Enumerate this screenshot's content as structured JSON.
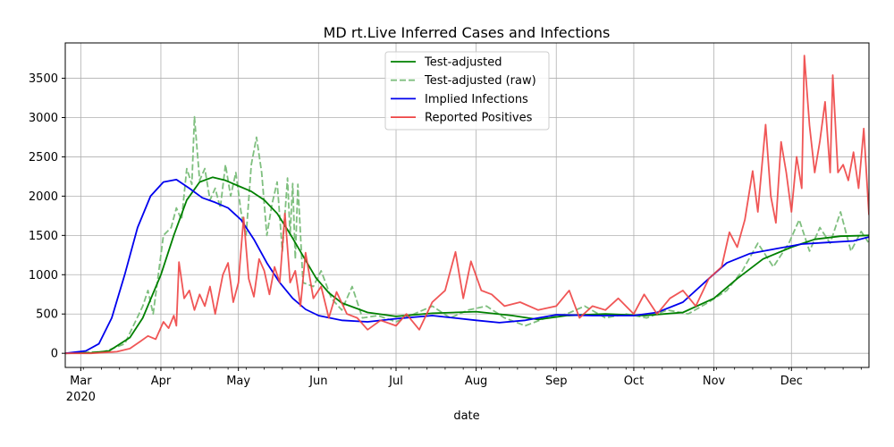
{
  "chart_data": {
    "type": "line",
    "title": "MD rt.Live Inferred Cases and Infections",
    "xlabel": "date",
    "ylabel": "",
    "x_range": [
      "2020-02-24",
      "2020-12-31"
    ],
    "ylim": [
      -180,
      3950
    ],
    "grid": true,
    "legend_position": "top-center",
    "x_ticks": [
      {
        "date": "2020-03-01",
        "label": "Mar",
        "sublabel": "2020"
      },
      {
        "date": "2020-04-01",
        "label": "Apr",
        "sublabel": ""
      },
      {
        "date": "2020-05-01",
        "label": "May",
        "sublabel": ""
      },
      {
        "date": "2020-06-01",
        "label": "Jun",
        "sublabel": ""
      },
      {
        "date": "2020-07-01",
        "label": "Jul",
        "sublabel": ""
      },
      {
        "date": "2020-08-01",
        "label": "Aug",
        "sublabel": ""
      },
      {
        "date": "2020-09-01",
        "label": "Sep",
        "sublabel": ""
      },
      {
        "date": "2020-10-01",
        "label": "Oct",
        "sublabel": ""
      },
      {
        "date": "2020-11-01",
        "label": "Nov",
        "sublabel": ""
      },
      {
        "date": "2020-12-01",
        "label": "Dec",
        "sublabel": ""
      }
    ],
    "y_ticks": [
      0,
      500,
      1000,
      1500,
      2000,
      2500,
      3000,
      3500
    ],
    "series": [
      {
        "name": "Test-adjusted",
        "color": "#008000",
        "style": "solid",
        "points": [
          [
            "2020-02-24",
            0
          ],
          [
            "2020-03-05",
            5
          ],
          [
            "2020-03-12",
            30
          ],
          [
            "2020-03-20",
            200
          ],
          [
            "2020-03-25",
            450
          ],
          [
            "2020-04-01",
            1000
          ],
          [
            "2020-04-06",
            1500
          ],
          [
            "2020-04-11",
            1950
          ],
          [
            "2020-04-16",
            2180
          ],
          [
            "2020-04-21",
            2240
          ],
          [
            "2020-04-26",
            2200
          ],
          [
            "2020-05-01",
            2130
          ],
          [
            "2020-05-06",
            2060
          ],
          [
            "2020-05-11",
            1950
          ],
          [
            "2020-05-16",
            1780
          ],
          [
            "2020-05-21",
            1520
          ],
          [
            "2020-05-26",
            1240
          ],
          [
            "2020-05-31",
            960
          ],
          [
            "2020-06-05",
            770
          ],
          [
            "2020-06-10",
            640
          ],
          [
            "2020-06-20",
            520
          ],
          [
            "2020-07-01",
            470
          ],
          [
            "2020-07-15",
            510
          ],
          [
            "2020-08-01",
            530
          ],
          [
            "2020-08-15",
            480
          ],
          [
            "2020-08-25",
            430
          ],
          [
            "2020-09-05",
            480
          ],
          [
            "2020-09-20",
            500
          ],
          [
            "2020-10-05",
            480
          ],
          [
            "2020-10-20",
            520
          ],
          [
            "2020-11-01",
            700
          ],
          [
            "2020-11-10",
            950
          ],
          [
            "2020-11-20",
            1200
          ],
          [
            "2020-12-01",
            1350
          ],
          [
            "2020-12-10",
            1450
          ],
          [
            "2020-12-20",
            1490
          ],
          [
            "2020-12-31",
            1500
          ]
        ]
      },
      {
        "name": "Test-adjusted (raw)",
        "color": "#7fbf7f",
        "style": "dashed",
        "points": [
          [
            "2020-02-24",
            0
          ],
          [
            "2020-03-10",
            20
          ],
          [
            "2020-03-18",
            120
          ],
          [
            "2020-03-25",
            600
          ],
          [
            "2020-03-27",
            800
          ],
          [
            "2020-03-29",
            500
          ],
          [
            "2020-03-31",
            1000
          ],
          [
            "2020-04-02",
            1500
          ],
          [
            "2020-04-05",
            1600
          ],
          [
            "2020-04-07",
            1850
          ],
          [
            "2020-04-09",
            1700
          ],
          [
            "2020-04-11",
            2350
          ],
          [
            "2020-04-13",
            2150
          ],
          [
            "2020-04-14",
            3010
          ],
          [
            "2020-04-16",
            2200
          ],
          [
            "2020-04-18",
            2350
          ],
          [
            "2020-04-20",
            1950
          ],
          [
            "2020-04-22",
            2100
          ],
          [
            "2020-04-24",
            1850
          ],
          [
            "2020-04-26",
            2400
          ],
          [
            "2020-04-28",
            2000
          ],
          [
            "2020-04-30",
            2300
          ],
          [
            "2020-05-02",
            1800
          ],
          [
            "2020-05-04",
            1500
          ],
          [
            "2020-05-06",
            2400
          ],
          [
            "2020-05-08",
            2750
          ],
          [
            "2020-05-10",
            2300
          ],
          [
            "2020-05-12",
            1500
          ],
          [
            "2020-05-14",
            1900
          ],
          [
            "2020-05-16",
            2180
          ],
          [
            "2020-05-18",
            1300
          ],
          [
            "2020-05-20",
            2230
          ],
          [
            "2020-05-21",
            1500
          ],
          [
            "2020-05-22",
            2160
          ],
          [
            "2020-05-23",
            1200
          ],
          [
            "2020-05-24",
            2150
          ],
          [
            "2020-05-26",
            900
          ],
          [
            "2020-05-30",
            850
          ],
          [
            "2020-06-02",
            1050
          ],
          [
            "2020-06-06",
            700
          ],
          [
            "2020-06-10",
            550
          ],
          [
            "2020-06-14",
            850
          ],
          [
            "2020-06-18",
            450
          ],
          [
            "2020-06-24",
            480
          ],
          [
            "2020-07-01",
            400
          ],
          [
            "2020-07-08",
            500
          ],
          [
            "2020-07-15",
            600
          ],
          [
            "2020-07-22",
            450
          ],
          [
            "2020-07-29",
            550
          ],
          [
            "2020-08-05",
            600
          ],
          [
            "2020-08-12",
            450
          ],
          [
            "2020-08-20",
            350
          ],
          [
            "2020-08-28",
            450
          ],
          [
            "2020-09-05",
            500
          ],
          [
            "2020-09-12",
            600
          ],
          [
            "2020-09-20",
            450
          ],
          [
            "2020-09-28",
            500
          ],
          [
            "2020-10-06",
            450
          ],
          [
            "2020-10-14",
            550
          ],
          [
            "2020-10-22",
            500
          ],
          [
            "2020-10-30",
            650
          ],
          [
            "2020-11-06",
            800
          ],
          [
            "2020-11-12",
            1050
          ],
          [
            "2020-11-18",
            1400
          ],
          [
            "2020-11-24",
            1100
          ],
          [
            "2020-11-30",
            1400
          ],
          [
            "2020-12-04",
            1700
          ],
          [
            "2020-12-08",
            1300
          ],
          [
            "2020-12-12",
            1600
          ],
          [
            "2020-12-16",
            1400
          ],
          [
            "2020-12-20",
            1800
          ],
          [
            "2020-12-24",
            1300
          ],
          [
            "2020-12-28",
            1550
          ],
          [
            "2020-12-31",
            1400
          ]
        ]
      },
      {
        "name": "Implied Infections",
        "color": "#0000ee",
        "style": "solid",
        "points": [
          [
            "2020-02-24",
            0
          ],
          [
            "2020-03-03",
            30
          ],
          [
            "2020-03-08",
            120
          ],
          [
            "2020-03-13",
            450
          ],
          [
            "2020-03-18",
            1000
          ],
          [
            "2020-03-23",
            1600
          ],
          [
            "2020-03-28",
            2000
          ],
          [
            "2020-04-02",
            2180
          ],
          [
            "2020-04-07",
            2210
          ],
          [
            "2020-04-12",
            2100
          ],
          [
            "2020-04-17",
            1980
          ],
          [
            "2020-04-22",
            1920
          ],
          [
            "2020-04-27",
            1850
          ],
          [
            "2020-05-02",
            1700
          ],
          [
            "2020-05-07",
            1450
          ],
          [
            "2020-05-12",
            1150
          ],
          [
            "2020-05-17",
            900
          ],
          [
            "2020-05-22",
            700
          ],
          [
            "2020-05-27",
            560
          ],
          [
            "2020-06-01",
            480
          ],
          [
            "2020-06-10",
            420
          ],
          [
            "2020-06-20",
            400
          ],
          [
            "2020-07-01",
            440
          ],
          [
            "2020-07-15",
            480
          ],
          [
            "2020-08-01",
            420
          ],
          [
            "2020-08-10",
            390
          ],
          [
            "2020-08-20",
            420
          ],
          [
            "2020-09-01",
            490
          ],
          [
            "2020-09-15",
            480
          ],
          [
            "2020-10-01",
            480
          ],
          [
            "2020-10-10",
            520
          ],
          [
            "2020-10-20",
            650
          ],
          [
            "2020-10-30",
            950
          ],
          [
            "2020-11-06",
            1150
          ],
          [
            "2020-11-15",
            1270
          ],
          [
            "2020-11-25",
            1330
          ],
          [
            "2020-12-05",
            1390
          ],
          [
            "2020-12-15",
            1410
          ],
          [
            "2020-12-25",
            1430
          ],
          [
            "2020-12-31",
            1480
          ]
        ]
      },
      {
        "name": "Reported Positives",
        "color": "#ee4444",
        "style": "solid",
        "points": [
          [
            "2020-02-24",
            0
          ],
          [
            "2020-03-05",
            0
          ],
          [
            "2020-03-15",
            20
          ],
          [
            "2020-03-20",
            60
          ],
          [
            "2020-03-24",
            150
          ],
          [
            "2020-03-27",
            220
          ],
          [
            "2020-03-30",
            180
          ],
          [
            "2020-04-02",
            400
          ],
          [
            "2020-04-04",
            320
          ],
          [
            "2020-04-06",
            480
          ],
          [
            "2020-04-07",
            350
          ],
          [
            "2020-04-08",
            1160
          ],
          [
            "2020-04-10",
            700
          ],
          [
            "2020-04-12",
            800
          ],
          [
            "2020-04-14",
            550
          ],
          [
            "2020-04-16",
            750
          ],
          [
            "2020-04-18",
            600
          ],
          [
            "2020-04-20",
            850
          ],
          [
            "2020-04-22",
            500
          ],
          [
            "2020-04-25",
            1000
          ],
          [
            "2020-04-27",
            1150
          ],
          [
            "2020-04-29",
            650
          ],
          [
            "2020-05-01",
            900
          ],
          [
            "2020-05-03",
            1730
          ],
          [
            "2020-05-05",
            950
          ],
          [
            "2020-05-07",
            720
          ],
          [
            "2020-05-09",
            1200
          ],
          [
            "2020-05-11",
            1050
          ],
          [
            "2020-05-13",
            750
          ],
          [
            "2020-05-15",
            1100
          ],
          [
            "2020-05-17",
            900
          ],
          [
            "2020-05-19",
            1780
          ],
          [
            "2020-05-21",
            900
          ],
          [
            "2020-05-23",
            1050
          ],
          [
            "2020-05-25",
            600
          ],
          [
            "2020-05-27",
            1280
          ],
          [
            "2020-05-30",
            700
          ],
          [
            "2020-06-02",
            850
          ],
          [
            "2020-06-05",
            450
          ],
          [
            "2020-06-08",
            780
          ],
          [
            "2020-06-12",
            500
          ],
          [
            "2020-06-16",
            450
          ],
          [
            "2020-06-20",
            300
          ],
          [
            "2020-06-25",
            420
          ],
          [
            "2020-07-01",
            350
          ],
          [
            "2020-07-05",
            500
          ],
          [
            "2020-07-10",
            300
          ],
          [
            "2020-07-15",
            650
          ],
          [
            "2020-07-20",
            800
          ],
          [
            "2020-07-24",
            1290
          ],
          [
            "2020-07-27",
            700
          ],
          [
            "2020-07-30",
            1170
          ],
          [
            "2020-08-03",
            800
          ],
          [
            "2020-08-07",
            750
          ],
          [
            "2020-08-12",
            600
          ],
          [
            "2020-08-18",
            650
          ],
          [
            "2020-08-25",
            550
          ],
          [
            "2020-09-01",
            600
          ],
          [
            "2020-09-06",
            800
          ],
          [
            "2020-09-10",
            450
          ],
          [
            "2020-09-15",
            600
          ],
          [
            "2020-09-20",
            550
          ],
          [
            "2020-09-25",
            700
          ],
          [
            "2020-10-01",
            500
          ],
          [
            "2020-10-05",
            750
          ],
          [
            "2020-10-10",
            500
          ],
          [
            "2020-10-15",
            700
          ],
          [
            "2020-10-20",
            800
          ],
          [
            "2020-10-25",
            600
          ],
          [
            "2020-10-30",
            950
          ],
          [
            "2020-11-04",
            1100
          ],
          [
            "2020-11-07",
            1540
          ],
          [
            "2020-11-10",
            1350
          ],
          [
            "2020-11-13",
            1700
          ],
          [
            "2020-11-16",
            2320
          ],
          [
            "2020-11-18",
            1800
          ],
          [
            "2020-11-21",
            2910
          ],
          [
            "2020-11-23",
            2000
          ],
          [
            "2020-11-25",
            1660
          ],
          [
            "2020-11-27",
            2690
          ],
          [
            "2020-11-29",
            2300
          ],
          [
            "2020-12-01",
            1800
          ],
          [
            "2020-12-03",
            2500
          ],
          [
            "2020-12-05",
            2100
          ],
          [
            "2020-12-06",
            3790
          ],
          [
            "2020-12-08",
            2900
          ],
          [
            "2020-12-10",
            2300
          ],
          [
            "2020-12-12",
            2700
          ],
          [
            "2020-12-14",
            3200
          ],
          [
            "2020-12-16",
            2300
          ],
          [
            "2020-12-17",
            3540
          ],
          [
            "2020-12-19",
            2300
          ],
          [
            "2020-12-21",
            2400
          ],
          [
            "2020-12-23",
            2200
          ],
          [
            "2020-12-25",
            2560
          ],
          [
            "2020-12-27",
            2100
          ],
          [
            "2020-12-29",
            2860
          ],
          [
            "2020-12-30",
            2300
          ],
          [
            "2020-12-31",
            1760
          ]
        ]
      }
    ]
  }
}
